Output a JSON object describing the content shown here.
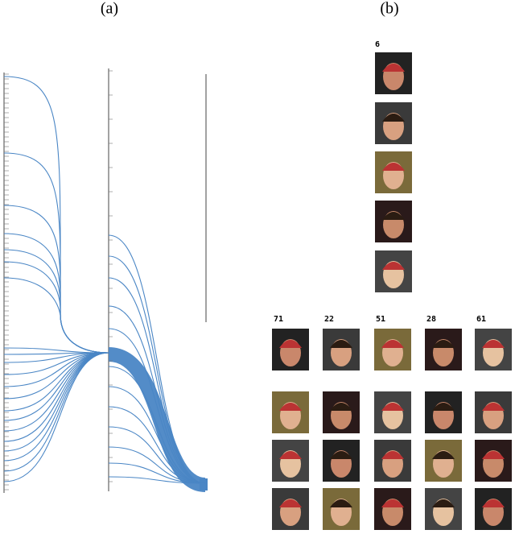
{
  "panel_a": {
    "label": "(a)"
  },
  "panel_b": {
    "label": "(b)",
    "top_label": "6",
    "column_labels": [
      "71",
      "22",
      "51",
      "28",
      "61"
    ]
  }
}
